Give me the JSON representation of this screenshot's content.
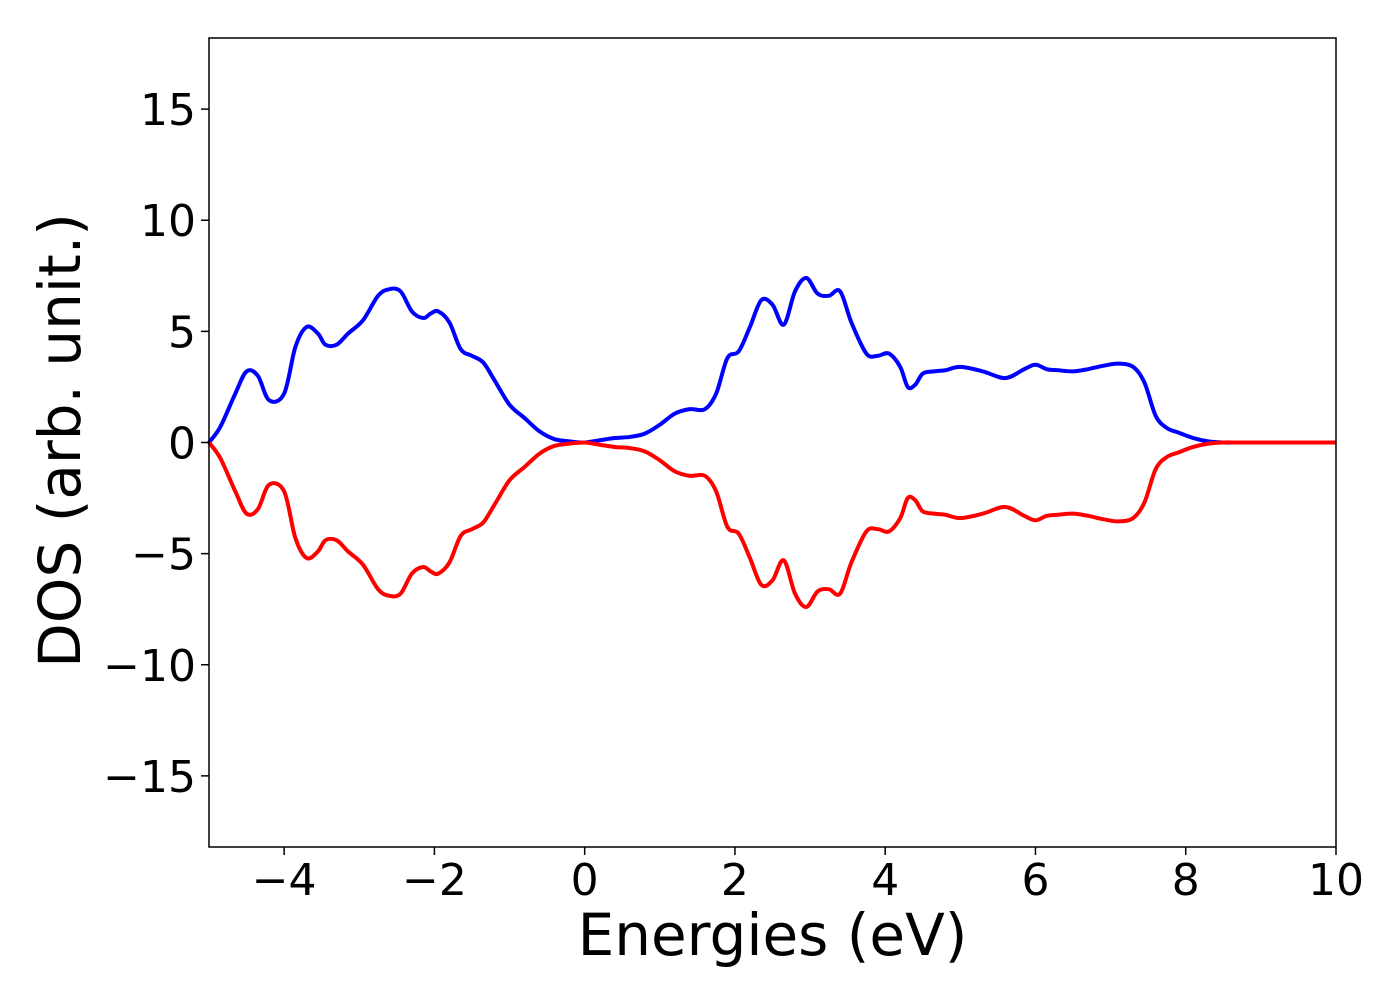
{
  "chart_data": {
    "type": "line",
    "title": "",
    "xlabel": "Energies (eV)",
    "ylabel": "DOS (arb. unit.)",
    "xlim": [
      -5,
      10
    ],
    "ylim": [
      -18.2,
      18.2
    ],
    "x_ticks": [
      -4,
      -2,
      0,
      2,
      4,
      6,
      8,
      10
    ],
    "x_tick_labels": [
      "−4",
      "−2",
      "0",
      "2",
      "4",
      "6",
      "8",
      "10"
    ],
    "y_ticks": [
      15,
      10,
      5,
      0,
      -5,
      -10,
      -15
    ],
    "y_tick_labels": [
      "15",
      "10",
      "5",
      "0",
      "−5",
      "−10",
      "−15"
    ],
    "grid": false,
    "legend": "none",
    "series": [
      {
        "color": "#0000ff",
        "x": [
          -5.0,
          -4.85,
          -4.65,
          -4.5,
          -4.35,
          -4.2,
          -4.0,
          -3.85,
          -3.7,
          -3.55,
          -3.45,
          -3.3,
          -3.15,
          -2.95,
          -2.75,
          -2.6,
          -2.45,
          -2.3,
          -2.15,
          -2.05,
          -1.95,
          -1.8,
          -1.65,
          -1.5,
          -1.35,
          -1.2,
          -1.0,
          -0.8,
          -0.6,
          -0.4,
          -0.2,
          0.0,
          0.2,
          0.4,
          0.6,
          0.8,
          1.0,
          1.2,
          1.4,
          1.6,
          1.75,
          1.9,
          2.05,
          2.2,
          2.35,
          2.5,
          2.65,
          2.8,
          2.95,
          3.1,
          3.25,
          3.4,
          3.55,
          3.75,
          3.9,
          4.05,
          4.2,
          4.3,
          4.4,
          4.5,
          4.65,
          4.8,
          5.0,
          5.3,
          5.6,
          5.85,
          6.0,
          6.15,
          6.3,
          6.5,
          6.7,
          6.9,
          7.1,
          7.3,
          7.45,
          7.6,
          7.75,
          7.9,
          8.1,
          8.3,
          8.5,
          8.7,
          9.0,
          9.5,
          10.0
        ],
        "y": [
          0.0,
          0.7,
          2.2,
          3.2,
          3.0,
          1.9,
          2.2,
          4.3,
          5.2,
          4.9,
          4.4,
          4.4,
          4.9,
          5.5,
          6.6,
          6.9,
          6.8,
          5.9,
          5.6,
          5.8,
          5.9,
          5.4,
          4.2,
          3.9,
          3.6,
          2.8,
          1.7,
          1.1,
          0.5,
          0.15,
          0.05,
          0.0,
          0.1,
          0.2,
          0.25,
          0.4,
          0.8,
          1.3,
          1.5,
          1.5,
          2.2,
          3.8,
          4.1,
          5.2,
          6.4,
          6.2,
          5.3,
          6.8,
          7.4,
          6.7,
          6.6,
          6.8,
          5.4,
          4.0,
          3.9,
          4.0,
          3.4,
          2.5,
          2.6,
          3.1,
          3.2,
          3.25,
          3.4,
          3.2,
          2.9,
          3.3,
          3.5,
          3.3,
          3.25,
          3.2,
          3.3,
          3.45,
          3.55,
          3.4,
          2.7,
          1.2,
          0.65,
          0.45,
          0.2,
          0.05,
          0.0,
          0.0,
          0.0,
          0.0,
          0.0
        ]
      },
      {
        "color": "#ff0000",
        "x": [
          -5.0,
          -4.85,
          -4.65,
          -4.5,
          -4.35,
          -4.2,
          -4.0,
          -3.85,
          -3.7,
          -3.55,
          -3.45,
          -3.3,
          -3.15,
          -2.95,
          -2.75,
          -2.6,
          -2.45,
          -2.3,
          -2.15,
          -2.05,
          -1.95,
          -1.8,
          -1.65,
          -1.5,
          -1.35,
          -1.2,
          -1.0,
          -0.8,
          -0.6,
          -0.4,
          -0.2,
          0.0,
          0.2,
          0.4,
          0.6,
          0.8,
          1.0,
          1.2,
          1.4,
          1.6,
          1.75,
          1.9,
          2.05,
          2.2,
          2.35,
          2.5,
          2.65,
          2.8,
          2.95,
          3.1,
          3.25,
          3.4,
          3.55,
          3.75,
          3.9,
          4.05,
          4.2,
          4.3,
          4.4,
          4.5,
          4.65,
          4.8,
          5.0,
          5.3,
          5.6,
          5.85,
          6.0,
          6.15,
          6.3,
          6.5,
          6.7,
          6.9,
          7.1,
          7.3,
          7.45,
          7.6,
          7.75,
          7.9,
          8.1,
          8.3,
          8.5,
          8.7,
          9.0,
          9.5,
          10.0
        ],
        "y": [
          0.0,
          -0.7,
          -2.2,
          -3.2,
          -3.0,
          -1.9,
          -2.2,
          -4.3,
          -5.2,
          -4.9,
          -4.4,
          -4.4,
          -4.9,
          -5.5,
          -6.6,
          -6.9,
          -6.8,
          -5.9,
          -5.6,
          -5.8,
          -5.9,
          -5.4,
          -4.2,
          -3.9,
          -3.6,
          -2.8,
          -1.7,
          -1.1,
          -0.5,
          -0.15,
          -0.05,
          0.0,
          -0.1,
          -0.2,
          -0.25,
          -0.4,
          -0.8,
          -1.3,
          -1.5,
          -1.5,
          -2.2,
          -3.8,
          -4.1,
          -5.2,
          -6.4,
          -6.2,
          -5.3,
          -6.8,
          -7.4,
          -6.7,
          -6.6,
          -6.8,
          -5.4,
          -4.0,
          -3.9,
          -4.0,
          -3.4,
          -2.5,
          -2.6,
          -3.1,
          -3.2,
          -3.25,
          -3.4,
          -3.2,
          -2.9,
          -3.3,
          -3.5,
          -3.3,
          -3.25,
          -3.2,
          -3.3,
          -3.45,
          -3.55,
          -3.4,
          -2.7,
          -1.2,
          -0.65,
          -0.45,
          -0.2,
          -0.05,
          0.0,
          0.0,
          0.0,
          0.0,
          0.0
        ]
      }
    ]
  }
}
